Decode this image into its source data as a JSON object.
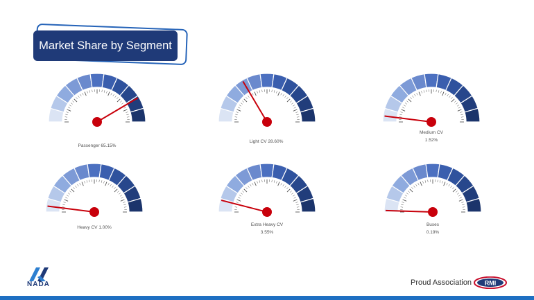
{
  "title": "Market Share by Segment",
  "gauges": [
    {
      "id": "passenger",
      "label": "Passenger 65.15%",
      "label2": "",
      "value_pct": 65.15,
      "dial_value": 83
    },
    {
      "id": "light-cv",
      "label": "Light CV 28.60%",
      "label2": "",
      "value_pct": 28.6,
      "dial_value": 33
    },
    {
      "id": "medium-cv",
      "label": "Medium  CV",
      "label2": "1.52%",
      "value_pct": 1.52,
      "dial_value": 4
    },
    {
      "id": "heavy-cv",
      "label": "Heavy CV 1.00%",
      "label2": "",
      "value_pct": 1.0,
      "dial_value": 4
    },
    {
      "id": "extra-heavy-cv",
      "label": "Extra Heavy CV",
      "label2": "3.55%",
      "value_pct": 3.55,
      "dial_value": 8
    },
    {
      "id": "buses",
      "label": "Buses",
      "label2": "0.19%",
      "value_pct": 0.19,
      "dial_value": 1
    }
  ],
  "footer": {
    "nada_text": "NADA",
    "proud_text": "Proud Association of",
    "rmi_text": "RMI"
  },
  "colors": {
    "title_bg": "#1f3a78",
    "needle": "#c8000b",
    "bands": [
      "#dbe4f4",
      "#b5c8ea",
      "#8fabdf",
      "#7d9ad6",
      "#6a89cd",
      "#4c70c0",
      "#3a5eae",
      "#2f529d",
      "#27478c",
      "#213d7b",
      "#1b346b"
    ],
    "bottom_bar": "#1e6fc2"
  }
}
